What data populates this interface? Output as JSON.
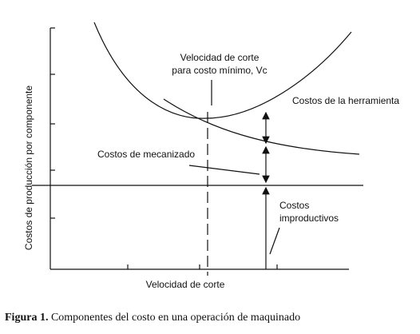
{
  "axes": {
    "y_label": "Costos de producción por componente",
    "x_label": "Velocidad de corte"
  },
  "labels": {
    "vc_line1": "Velocidad de corte",
    "vc_line2": "para costo mínimo, Vc",
    "tool_cost": "Costos de la herramienta",
    "machining_cost": "Costos de mecanizado",
    "idle_line1": "Costos",
    "idle_line2": "improductivos"
  },
  "caption": {
    "figure": "Figura 1.",
    "text": "Componentes del costo en una operación de maquinado"
  }
}
